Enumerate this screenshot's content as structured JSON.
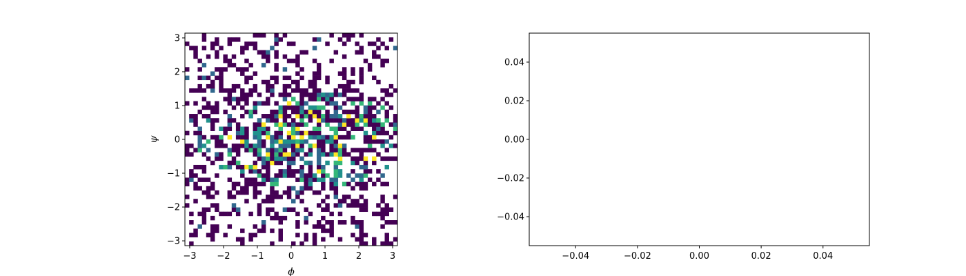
{
  "chart_data": [
    {
      "type": "heatmap",
      "title": "",
      "xlabel": "ϕ",
      "ylabel": "ψ",
      "xlim": [
        -3.1416,
        3.1416
      ],
      "ylim": [
        -3.1416,
        3.1416
      ],
      "xticks": [
        -3,
        -2,
        -1,
        0,
        1,
        2,
        3
      ],
      "yticks": [
        -3,
        -2,
        -1,
        0,
        1,
        2,
        3
      ],
      "xtick_labels": [
        "−3",
        "−2",
        "−1",
        "0",
        "1",
        "2",
        "3"
      ],
      "ytick_labels": [
        "−3",
        "−2",
        "−1",
        "0",
        "1",
        "2",
        "3"
      ],
      "grid": false,
      "colormap": "viridis",
      "bins": [
        50,
        50
      ],
      "empty_bins": "white",
      "density_profile": {
        "description_values": "sparse 2D histogram of dihedral angles; count 1 bins dark purple, higher counts teal to yellow, concentrated near psi 0",
        "peak_psi": 0.0,
        "peak_phi": 0.3,
        "max_count_level": 4
      }
    },
    {
      "type": "line",
      "title": "",
      "xlabel": "",
      "ylabel": "",
      "series": [],
      "xlim": [
        -0.055,
        0.055
      ],
      "ylim": [
        -0.055,
        0.055
      ],
      "xticks": [
        -0.04,
        -0.02,
        0.0,
        0.02,
        0.04
      ],
      "yticks": [
        -0.04,
        -0.02,
        0.0,
        0.02,
        0.04
      ],
      "xtick_labels": [
        "−0.04",
        "−0.02",
        "0.00",
        "0.02",
        "0.04"
      ],
      "ytick_labels": [
        "−0.04",
        "−0.02",
        "0.00",
        "0.02",
        "0.04"
      ],
      "grid": false
    }
  ],
  "colors": {
    "viridis_levels": [
      "#440154",
      "#31688e",
      "#21918c",
      "#35b779",
      "#fde725"
    ],
    "axes_edge": "#000000",
    "background": "#ffffff"
  }
}
